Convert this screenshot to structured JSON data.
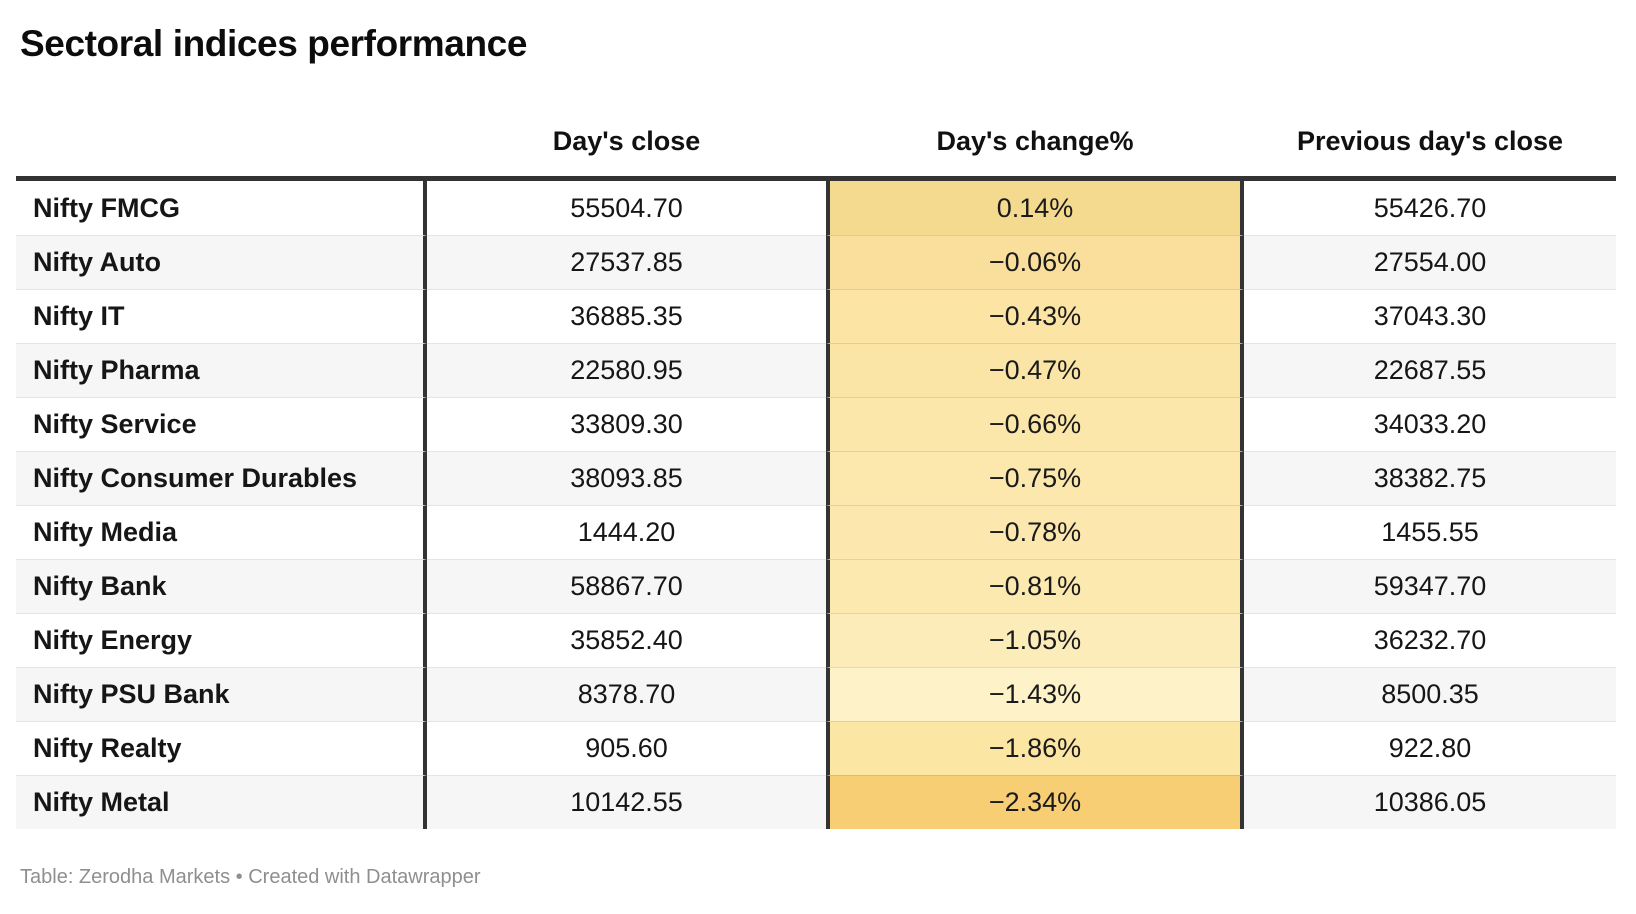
{
  "title": "Sectoral indices performance",
  "header": {
    "close": "Day's close",
    "change": "Day's change%",
    "prev": "Previous day's close"
  },
  "rows": [
    {
      "label": "Nifty FMCG",
      "close": "55504.70",
      "change": "0.14%",
      "prev": "55426.70",
      "change_bg": "#f4da8e"
    },
    {
      "label": "Nifty Auto",
      "close": "27537.85",
      "change": "−0.06%",
      "prev": "27554.00",
      "change_bg": "#fadf9c"
    },
    {
      "label": "Nifty IT",
      "close": "36885.35",
      "change": "−0.43%",
      "prev": "37043.30",
      "change_bg": "#fbe4a4"
    },
    {
      "label": "Nifty Pharma",
      "close": "22580.95",
      "change": "−0.47%",
      "prev": "22687.55",
      "change_bg": "#fbe5a6"
    },
    {
      "label": "Nifty Service",
      "close": "33809.30",
      "change": "−0.66%",
      "prev": "34033.20",
      "change_bg": "#fbe7aa"
    },
    {
      "label": "Nifty Consumer Durables",
      "close": "38093.85",
      "change": "−0.75%",
      "prev": "38382.75",
      "change_bg": "#fce8ad"
    },
    {
      "label": "Nifty Media",
      "close": "1444.20",
      "change": "−0.78%",
      "prev": "1455.55",
      "change_bg": "#fce8ae"
    },
    {
      "label": "Nifty Bank",
      "close": "58867.70",
      "change": "−0.81%",
      "prev": "59347.70",
      "change_bg": "#fce9af"
    },
    {
      "label": "Nifty Energy",
      "close": "35852.40",
      "change": "−1.05%",
      "prev": "36232.70",
      "change_bg": "#fcecb9"
    },
    {
      "label": "Nifty PSU Bank",
      "close": "8378.70",
      "change": "−1.43%",
      "prev": "8500.35",
      "change_bg": "#fdf2c8"
    },
    {
      "label": "Nifty Realty",
      "close": "905.60",
      "change": "−1.86%",
      "prev": "922.80",
      "change_bg": "#fbe6a3"
    },
    {
      "label": "Nifty Metal",
      "close": "10142.55",
      "change": "−2.34%",
      "prev": "10386.05",
      "change_bg": "#f8ce74"
    }
  ],
  "footer": "Table: Zerodha Markets • Created with Datawrapper",
  "colors": {
    "border_dark": "#333333",
    "row_alt_bg": "#f6f6f6",
    "separator": "#e4e4e4",
    "footer_text": "#8f8f8f",
    "heat_max": "#f4da8e",
    "heat_light": "#fdf2c8",
    "heat_min": "#f8ce74"
  },
  "chart_data": {
    "type": "table",
    "title": "Sectoral indices performance",
    "columns": [
      "Day's close",
      "Day's change%",
      "Previous day's close"
    ],
    "categories": [
      "Nifty FMCG",
      "Nifty Auto",
      "Nifty IT",
      "Nifty Pharma",
      "Nifty Service",
      "Nifty Consumer Durables",
      "Nifty Media",
      "Nifty Bank",
      "Nifty Energy",
      "Nifty PSU Bank",
      "Nifty Realty",
      "Nifty Metal"
    ],
    "series": [
      {
        "name": "Day's close",
        "values": [
          55504.7,
          27537.85,
          36885.35,
          22580.95,
          33809.3,
          38093.85,
          1444.2,
          58867.7,
          35852.4,
          8378.7,
          905.6,
          10142.55
        ]
      },
      {
        "name": "Day's change%",
        "values": [
          0.14,
          -0.06,
          -0.43,
          -0.47,
          -0.66,
          -0.75,
          -0.78,
          -0.81,
          -1.05,
          -1.43,
          -1.86,
          -2.34
        ]
      },
      {
        "name": "Previous day's close",
        "values": [
          55426.7,
          27554.0,
          37043.3,
          22687.55,
          34033.2,
          38382.75,
          1455.55,
          59347.7,
          36232.7,
          8500.35,
          922.8,
          10386.05
        ]
      }
    ],
    "layout_hints": {
      "heatmap_column": "Day's change%",
      "heatmap_palette": "gold (high) → pale yellow (≈ −1.4) → orange (low)",
      "rows_alternate_shading": true,
      "source_note": "Table: Zerodha Markets • Created with Datawrapper"
    }
  }
}
